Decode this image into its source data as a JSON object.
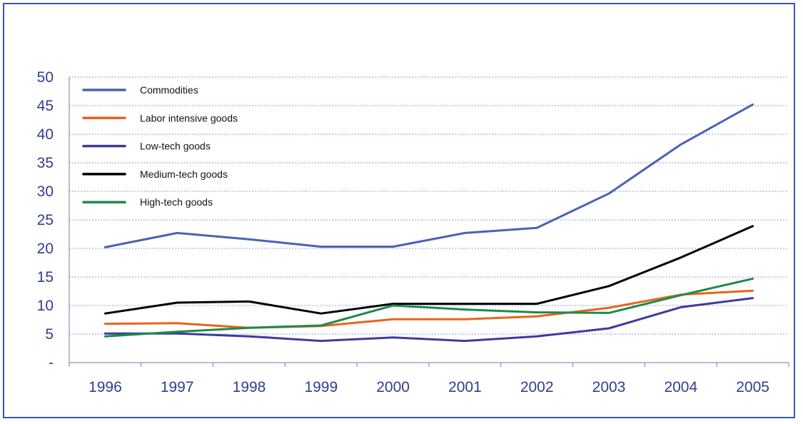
{
  "chart_data": {
    "type": "line",
    "categories": [
      "1996",
      "1997",
      "1998",
      "1999",
      "2000",
      "2001",
      "2002",
      "2003",
      "2004",
      "2005"
    ],
    "y_tick_labels": [
      "-",
      "5",
      "10",
      "15",
      "20",
      "25",
      "30",
      "35",
      "40",
      "45",
      "50"
    ],
    "ylim": [
      0,
      50
    ],
    "grid": true,
    "legend_position": "top-left",
    "series": [
      {
        "name": "Commodities",
        "color": "#4a62b4",
        "values": [
          20.2,
          22.7,
          21.6,
          20.3,
          20.3,
          22.7,
          23.6,
          29.6,
          38.2,
          45.2
        ]
      },
      {
        "name": "Labor intensive goods",
        "color": "#e8641c",
        "values": [
          6.8,
          6.9,
          6.1,
          6.4,
          7.6,
          7.6,
          8.1,
          9.6,
          11.9,
          12.6
        ]
      },
      {
        "name": "Low-tech goods",
        "color": "#3c3c9a",
        "values": [
          5.1,
          5.1,
          4.6,
          3.8,
          4.4,
          3.8,
          4.6,
          6.0,
          9.7,
          11.3
        ]
      },
      {
        "name": "Medium-tech goods",
        "color": "#000000",
        "values": [
          8.6,
          10.5,
          10.7,
          8.6,
          10.3,
          10.3,
          10.3,
          13.4,
          18.4,
          23.9
        ]
      },
      {
        "name": "High-tech goods",
        "color": "#1e8a4c",
        "values": [
          4.6,
          5.4,
          6.1,
          6.5,
          10.0,
          9.3,
          8.8,
          8.7,
          11.8,
          14.7
        ]
      }
    ]
  }
}
